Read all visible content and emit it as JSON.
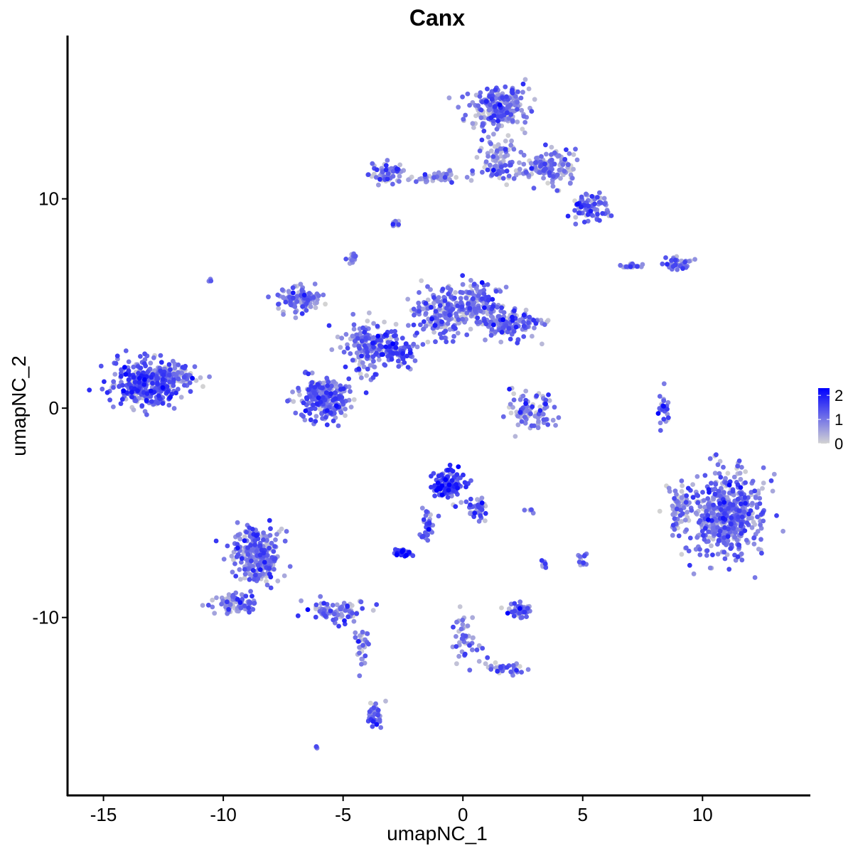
{
  "chart_data": {
    "type": "scatter",
    "title": "Canx",
    "xlabel": "umapNC_1",
    "ylabel": "umapNC_2",
    "xlim": [
      -16.5,
      14.5
    ],
    "ylim": [
      -18.5,
      17.8
    ],
    "x_ticks": [
      -15,
      -10,
      -5,
      0,
      5,
      10
    ],
    "x_tick_labels": [
      "-15",
      "-10",
      "-5",
      "0",
      "5",
      "10"
    ],
    "y_ticks": [
      -10,
      0,
      10
    ],
    "y_tick_labels": [
      "-10",
      "0",
      "10"
    ],
    "grid": false,
    "legend": {
      "placement": "right",
      "type": "colorbar",
      "range": [
        0,
        2.3
      ],
      "tick_values": [
        0,
        1,
        2
      ],
      "tick_labels": [
        "0",
        "1",
        "2"
      ],
      "low_color": "#d3d3d3",
      "high_color": "#0000ff"
    },
    "point_color_scale": [
      "#d3d3d3",
      "#0000ff"
    ],
    "clusters": [
      {
        "center": [
          -13.2,
          1.2
        ],
        "spread": [
          1.2,
          1.0
        ],
        "n": 320,
        "expr": 1.3
      },
      {
        "center": [
          -11.8,
          1.6
        ],
        "spread": [
          0.7,
          0.5
        ],
        "n": 60,
        "expr": 1.0
      },
      {
        "center": [
          -6.8,
          5.2
        ],
        "spread": [
          0.8,
          0.6
        ],
        "n": 110,
        "expr": 0.9
      },
      {
        "center": [
          -5.8,
          0.5
        ],
        "spread": [
          1.0,
          1.0
        ],
        "n": 220,
        "expr": 1.2
      },
      {
        "center": [
          -4.0,
          3.0
        ],
        "spread": [
          1.0,
          1.2
        ],
        "n": 160,
        "expr": 1.0
      },
      {
        "center": [
          -2.8,
          2.8
        ],
        "spread": [
          0.8,
          0.8
        ],
        "n": 90,
        "expr": 1.4
      },
      {
        "center": [
          -1.0,
          4.5
        ],
        "spread": [
          1.0,
          1.2
        ],
        "n": 170,
        "expr": 1.0
      },
      {
        "center": [
          0.5,
          5.0
        ],
        "spread": [
          1.0,
          1.0
        ],
        "n": 150,
        "expr": 1.0
      },
      {
        "center": [
          2.0,
          4.0
        ],
        "spread": [
          1.2,
          0.6
        ],
        "n": 140,
        "expr": 1.0
      },
      {
        "center": [
          -4.6,
          7.2
        ],
        "spread": [
          0.2,
          0.3
        ],
        "n": 15,
        "expr": 0.9
      },
      {
        "center": [
          -3.0,
          11.2
        ],
        "spread": [
          0.7,
          0.5
        ],
        "n": 60,
        "expr": 0.9
      },
      {
        "center": [
          -1.0,
          11.0
        ],
        "spread": [
          1.0,
          0.3
        ],
        "n": 50,
        "expr": 0.8
      },
      {
        "center": [
          1.5,
          14.3
        ],
        "spread": [
          1.1,
          0.9
        ],
        "n": 220,
        "expr": 0.9
      },
      {
        "center": [
          1.5,
          11.8
        ],
        "spread": [
          0.6,
          0.9
        ],
        "n": 80,
        "expr": 0.8
      },
      {
        "center": [
          3.6,
          11.5
        ],
        "spread": [
          1.2,
          0.8
        ],
        "n": 140,
        "expr": 0.9
      },
      {
        "center": [
          5.3,
          9.6
        ],
        "spread": [
          0.6,
          0.6
        ],
        "n": 80,
        "expr": 1.0
      },
      {
        "center": [
          -2.9,
          8.8
        ],
        "spread": [
          0.2,
          0.15
        ],
        "n": 10,
        "expr": 0.8
      },
      {
        "center": [
          7.0,
          6.8
        ],
        "spread": [
          0.5,
          0.12
        ],
        "n": 20,
        "expr": 0.9
      },
      {
        "center": [
          9.0,
          6.9
        ],
        "spread": [
          0.5,
          0.3
        ],
        "n": 40,
        "expr": 1.0
      },
      {
        "center": [
          2.8,
          -0.2
        ],
        "spread": [
          0.9,
          0.8
        ],
        "n": 90,
        "expr": 1.0
      },
      {
        "center": [
          8.4,
          0.0
        ],
        "spread": [
          0.25,
          0.8
        ],
        "n": 25,
        "expr": 1.0
      },
      {
        "center": [
          11.0,
          -5.0
        ],
        "spread": [
          1.4,
          1.8
        ],
        "n": 520,
        "expr": 1.0
      },
      {
        "center": [
          9.0,
          -4.8
        ],
        "spread": [
          0.5,
          1.0
        ],
        "n": 60,
        "expr": 0.5
      },
      {
        "center": [
          -0.6,
          -3.7
        ],
        "spread": [
          0.6,
          0.6
        ],
        "n": 110,
        "expr": 1.5
      },
      {
        "center": [
          0.6,
          -4.8
        ],
        "spread": [
          0.4,
          0.5
        ],
        "n": 40,
        "expr": 1.1
      },
      {
        "center": [
          -1.5,
          -5.6
        ],
        "spread": [
          0.3,
          0.8
        ],
        "n": 30,
        "expr": 1.1
      },
      {
        "center": [
          -2.5,
          -6.9
        ],
        "spread": [
          0.35,
          0.2
        ],
        "n": 40,
        "expr": 1.5
      },
      {
        "center": [
          -8.6,
          -7.0
        ],
        "spread": [
          0.9,
          1.3
        ],
        "n": 260,
        "expr": 1.0
      },
      {
        "center": [
          -9.4,
          -9.3
        ],
        "spread": [
          0.8,
          0.5
        ],
        "n": 80,
        "expr": 0.9
      },
      {
        "center": [
          -5.3,
          -9.7
        ],
        "spread": [
          1.1,
          0.5
        ],
        "n": 80,
        "expr": 1.0
      },
      {
        "center": [
          -4.2,
          -11.5
        ],
        "spread": [
          0.3,
          1.0
        ],
        "n": 30,
        "expr": 0.8
      },
      {
        "center": [
          -3.7,
          -14.7
        ],
        "spread": [
          0.3,
          0.6
        ],
        "n": 40,
        "expr": 1.0
      },
      {
        "center": [
          2.4,
          -9.6
        ],
        "spread": [
          0.5,
          0.3
        ],
        "n": 60,
        "expr": 1.0
      },
      {
        "center": [
          0.1,
          -11.0
        ],
        "spread": [
          0.5,
          1.0
        ],
        "n": 40,
        "expr": 0.9
      },
      {
        "center": [
          1.7,
          -12.4
        ],
        "spread": [
          0.9,
          0.25
        ],
        "n": 40,
        "expr": 0.9
      },
      {
        "center": [
          5.0,
          -7.2
        ],
        "spread": [
          0.2,
          0.25
        ],
        "n": 12,
        "expr": 1.0
      },
      {
        "center": [
          3.4,
          -7.4
        ],
        "spread": [
          0.2,
          0.2
        ],
        "n": 8,
        "expr": 1.0
      },
      {
        "center": [
          2.8,
          -4.9
        ],
        "spread": [
          0.2,
          0.1
        ],
        "n": 6,
        "expr": 0.8
      },
      {
        "center": [
          -6.1,
          -16.2
        ],
        "spread": [
          0.1,
          0.1
        ],
        "n": 4,
        "expr": 1.0
      },
      {
        "center": [
          -10.6,
          6.1
        ],
        "spread": [
          0.08,
          0.08
        ],
        "n": 3,
        "expr": 0.9
      }
    ]
  }
}
